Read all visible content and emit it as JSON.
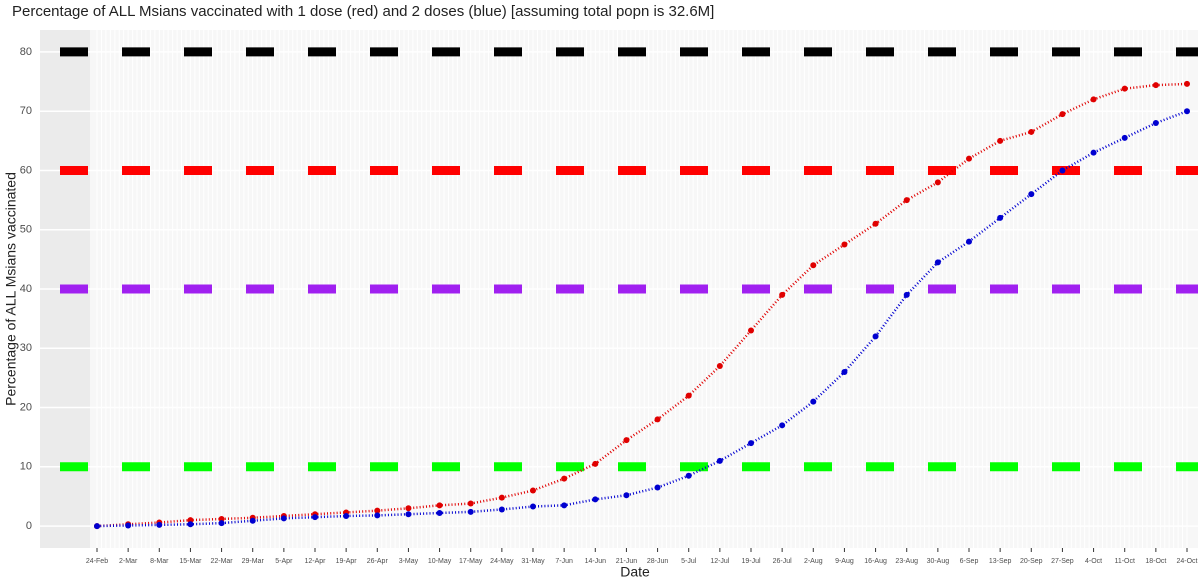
{
  "chart_data": {
    "type": "scatter",
    "title": "Percentage of ALL Msians vaccinated with 1 dose (red) and 2 doses (blue) [assuming total popn is 32.6M]",
    "x_label": "Date",
    "y_label": "Percentage of ALL Msians vaccinated",
    "categories": [
      "24-Feb",
      "2-Mar",
      "8-Mar",
      "15-Mar",
      "22-Mar",
      "29-Mar",
      "5-Apr",
      "12-Apr",
      "19-Apr",
      "26-Apr",
      "3-May",
      "10-May",
      "17-May",
      "24-May",
      "31-May",
      "7-Jun",
      "14-Jun",
      "21-Jun",
      "28-Jun",
      "5-Jul",
      "12-Jul",
      "19-Jul",
      "26-Jul",
      "2-Aug",
      "9-Aug",
      "16-Aug",
      "23-Aug",
      "30-Aug",
      "6-Sep",
      "13-Sep",
      "20-Sep",
      "27-Sep",
      "4-Oct",
      "11-Oct",
      "18-Oct",
      "24-Oct"
    ],
    "series": [
      {
        "name": "1 dose",
        "color": "#e00000",
        "values": [
          0,
          0.3,
          0.6,
          1.0,
          1.2,
          1.4,
          1.7,
          2.0,
          2.3,
          2.6,
          3.0,
          3.5,
          3.8,
          4.8,
          6.0,
          8.0,
          10.5,
          14.5,
          18,
          22,
          27,
          33,
          39,
          44,
          47.5,
          51,
          55,
          58,
          62,
          65,
          66.5,
          69.5,
          72,
          73.8,
          74.4,
          74.6
        ]
      },
      {
        "name": "2 doses",
        "color": "#0000d0",
        "values": [
          0,
          0.1,
          0.2,
          0.3,
          0.5,
          0.9,
          1.3,
          1.5,
          1.7,
          1.8,
          2.0,
          2.2,
          2.4,
          2.8,
          3.3,
          3.5,
          4.5,
          5.2,
          6.5,
          8.5,
          11,
          14,
          17,
          21,
          26,
          32,
          39,
          44.5,
          48,
          52,
          56,
          60,
          63,
          65.5,
          68,
          70
        ]
      }
    ],
    "hlines": [
      {
        "value": 80,
        "color": "#000000"
      },
      {
        "value": 60,
        "color": "#ff0000"
      },
      {
        "value": 40,
        "color": "#a020f0"
      },
      {
        "value": 10,
        "color": "#00ff00"
      }
    ],
    "ylim": [
      -3.7,
      83.7
    ],
    "yticks": [
      0,
      10,
      20,
      30,
      40,
      50,
      60,
      70,
      80
    ],
    "grid": true
  }
}
